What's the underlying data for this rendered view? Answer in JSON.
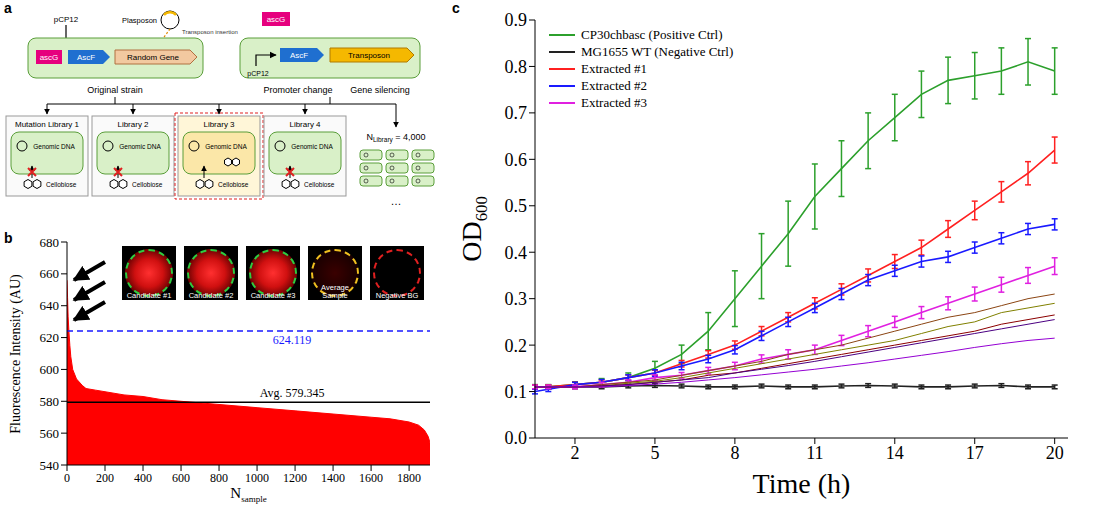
{
  "diagram": {
    "label": "a",
    "plasposon": "Plasposon",
    "original_strain": {
      "promoter": "pCP12",
      "regulator": "ascG",
      "genes": [
        "AscF",
        "Random Gene"
      ],
      "insertion": "Transposon insertion",
      "caption": "Original strain"
    },
    "mutant_strain": {
      "regulator": "ascG",
      "promoter": "pCP12",
      "genes": [
        "AscF",
        "Transposon"
      ],
      "captions": [
        "Promoter change",
        "Gene silencing"
      ]
    },
    "libraries": [
      {
        "name": "Mutation Library 1",
        "dna": "Genomic DNA",
        "substrate": "Cellobiose",
        "highlight": false
      },
      {
        "name": "Library 2",
        "dna": "Genomic DNA",
        "substrate": "Cellobiose",
        "highlight": false
      },
      {
        "name": "Library 3",
        "dna": "Genomic DNA",
        "substrate": "Cellobiose",
        "highlight": true
      },
      {
        "name": "Library 4",
        "dna": "Genomic DNA",
        "substrate": "Cellobiose",
        "highlight": false
      }
    ],
    "library_count": {
      "symbol": "N",
      "subscript": "Library",
      "text": " = 4,000"
    },
    "more": "…"
  },
  "chart_data": [
    {
      "label": "b",
      "type": "area",
      "xlabel": {
        "text": "N",
        "subscript": "sample"
      },
      "ylabel": "Fluorescence Intensity (AU)",
      "x": [
        0,
        3,
        6,
        10,
        15,
        20,
        30,
        50,
        80,
        100,
        150,
        200,
        300,
        400,
        500,
        600,
        800,
        1000,
        1200,
        1400,
        1600,
        1700,
        1800,
        1850,
        1880,
        1900,
        1910
      ],
      "values": [
        656,
        645,
        633,
        624,
        615,
        608,
        600,
        594,
        590,
        588,
        587,
        586,
        584,
        583,
        581,
        580,
        578,
        576,
        574,
        572,
        570,
        569,
        567,
        565,
        562,
        558,
        554
      ],
      "color": "#ff0000",
      "xlim": [
        0,
        1910
      ],
      "xticks": [
        0,
        200,
        400,
        600,
        800,
        1000,
        1200,
        1400,
        1600,
        1800
      ],
      "ylim": [
        540,
        680
      ],
      "yticks": [
        540,
        560,
        580,
        600,
        620,
        640,
        660,
        680
      ],
      "reference_lines": [
        {
          "value": 579.345,
          "label": "Avg. 579.345",
          "color": "#000000",
          "line_style": "solid"
        },
        {
          "value": 624.119,
          "label": "624.119",
          "color": "#1a1aff",
          "line_style": "dashed"
        }
      ],
      "insets": [
        {
          "label": "Candidate #1",
          "color": "#2ecc40"
        },
        {
          "label": "Candidate #2",
          "color": "#2ecc40"
        },
        {
          "label": "Candidate #3",
          "color": "#2ecc40"
        },
        {
          "label": "Average Sample",
          "color": "#f0c020"
        },
        {
          "label": "Negative BG",
          "color": "#e02020"
        }
      ]
    },
    {
      "label": "c",
      "type": "line",
      "xlabel": "Time (h)",
      "ylabel": {
        "text": "OD",
        "subscript": "600"
      },
      "x": [
        0.5,
        1,
        2,
        3,
        4,
        5,
        6,
        7,
        8,
        9,
        10,
        11,
        12,
        13,
        14,
        15,
        16,
        17,
        18,
        19,
        20
      ],
      "xlim": [
        0.5,
        20.5
      ],
      "xticks": [
        2,
        5,
        8,
        11,
        14,
        17,
        20
      ],
      "ylim": [
        0,
        0.9
      ],
      "yticks": [
        {
          "value": 0,
          "label": "0.0"
        },
        0.1,
        0.2,
        0.3,
        0.4,
        0.5,
        0.6,
        0.7,
        0.8,
        0.9
      ],
      "legend": "upper left",
      "series": [
        {
          "name": "CP30chbasc  (Positive Ctrl)",
          "color": "#2ca02c",
          "values": [
            0.11,
            0.11,
            0.115,
            0.12,
            0.13,
            0.15,
            0.18,
            0.23,
            0.3,
            0.37,
            0.44,
            0.52,
            0.58,
            0.64,
            0.69,
            0.74,
            0.77,
            0.78,
            0.79,
            0.81,
            0.79
          ],
          "errors": [
            0.005,
            0.005,
            0.006,
            0.008,
            0.01,
            0.015,
            0.02,
            0.04,
            0.06,
            0.07,
            0.07,
            0.07,
            0.06,
            0.06,
            0.05,
            0.05,
            0.05,
            0.05,
            0.05,
            0.05,
            0.05
          ]
        },
        {
          "name": "MG1655 WT (Negative Ctrl)",
          "color": "#222222",
          "values": [
            0.11,
            0.11,
            0.11,
            0.11,
            0.112,
            0.113,
            0.112,
            0.11,
            0.11,
            0.112,
            0.11,
            0.11,
            0.112,
            0.113,
            0.112,
            0.11,
            0.11,
            0.112,
            0.113,
            0.11,
            0.11
          ],
          "errors": [
            0.004,
            0.004,
            0.004,
            0.004,
            0.004,
            0.004,
            0.004,
            0.004,
            0.004,
            0.004,
            0.004,
            0.004,
            0.004,
            0.004,
            0.004,
            0.004,
            0.004,
            0.004,
            0.004,
            0.004,
            0.004
          ]
        },
        {
          "name": "Extracted #1",
          "color": "#ff2020",
          "values": [
            0.11,
            0.11,
            0.115,
            0.12,
            0.13,
            0.14,
            0.16,
            0.18,
            0.2,
            0.23,
            0.26,
            0.29,
            0.32,
            0.35,
            0.38,
            0.41,
            0.45,
            0.49,
            0.53,
            0.57,
            0.62
          ],
          "errors": [
            0.004,
            0.004,
            0.005,
            0.005,
            0.006,
            0.006,
            0.007,
            0.008,
            0.009,
            0.01,
            0.01,
            0.012,
            0.012,
            0.014,
            0.015,
            0.016,
            0.018,
            0.02,
            0.022,
            0.025,
            0.028
          ]
        },
        {
          "name": "Extracted #2",
          "color": "#1a1aff",
          "values": [
            0.1,
            0.105,
            0.115,
            0.12,
            0.13,
            0.14,
            0.155,
            0.17,
            0.19,
            0.22,
            0.25,
            0.28,
            0.31,
            0.34,
            0.36,
            0.38,
            0.39,
            0.41,
            0.43,
            0.45,
            0.46
          ],
          "errors": [
            0.005,
            0.005,
            0.005,
            0.006,
            0.006,
            0.007,
            0.008,
            0.008,
            0.009,
            0.01,
            0.01,
            0.01,
            0.012,
            0.012,
            0.012,
            0.012,
            0.012,
            0.012,
            0.012,
            0.012,
            0.012
          ]
        },
        {
          "name": "Extracted #3",
          "color": "#e020e0",
          "values": [
            0.11,
            0.11,
            0.11,
            0.115,
            0.12,
            0.13,
            0.135,
            0.145,
            0.155,
            0.17,
            0.18,
            0.19,
            0.21,
            0.23,
            0.25,
            0.27,
            0.29,
            0.31,
            0.33,
            0.35,
            0.37
          ],
          "errors": [
            0.004,
            0.004,
            0.004,
            0.005,
            0.005,
            0.006,
            0.006,
            0.007,
            0.008,
            0.009,
            0.01,
            0.01,
            0.011,
            0.012,
            0.012,
            0.013,
            0.014,
            0.015,
            0.016,
            0.017,
            0.018
          ]
        },
        {
          "color": "#8b4513",
          "values": [
            0.11,
            0.11,
            0.11,
            0.115,
            0.12,
            0.125,
            0.135,
            0.145,
            0.155,
            0.165,
            0.18,
            0.19,
            0.2,
            0.215,
            0.23,
            0.245,
            0.26,
            0.27,
            0.285,
            0.3,
            0.31
          ]
        },
        {
          "color": "#808000",
          "values": [
            0.11,
            0.11,
            0.11,
            0.112,
            0.118,
            0.122,
            0.13,
            0.14,
            0.15,
            0.16,
            0.17,
            0.18,
            0.19,
            0.2,
            0.21,
            0.225,
            0.24,
            0.25,
            0.27,
            0.28,
            0.29
          ]
        },
        {
          "color": "#8b0000",
          "values": [
            0.11,
            0.11,
            0.11,
            0.112,
            0.115,
            0.12,
            0.125,
            0.135,
            0.14,
            0.15,
            0.16,
            0.17,
            0.18,
            0.19,
            0.2,
            0.21,
            0.22,
            0.23,
            0.245,
            0.255,
            0.265
          ]
        },
        {
          "color": "#4b0082",
          "values": [
            0.11,
            0.11,
            0.11,
            0.112,
            0.115,
            0.12,
            0.125,
            0.13,
            0.14,
            0.148,
            0.156,
            0.165,
            0.175,
            0.185,
            0.195,
            0.205,
            0.215,
            0.225,
            0.235,
            0.245,
            0.255
          ]
        },
        {
          "color": "#9400d3",
          "values": [
            0.11,
            0.11,
            0.11,
            0.11,
            0.113,
            0.116,
            0.12,
            0.125,
            0.13,
            0.136,
            0.142,
            0.148,
            0.155,
            0.162,
            0.17,
            0.178,
            0.186,
            0.195,
            0.203,
            0.21,
            0.215
          ]
        }
      ]
    }
  ]
}
